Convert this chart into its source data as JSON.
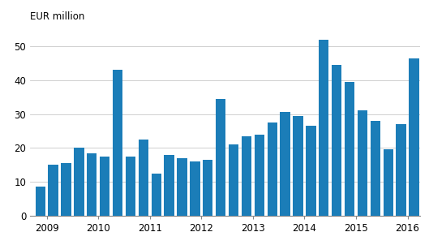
{
  "values": [
    8.5,
    15.0,
    15.5,
    20.0,
    18.5,
    17.5,
    43.0,
    17.5,
    22.5,
    12.5,
    18.0,
    17.0,
    16.0,
    16.5,
    34.5,
    21.0,
    23.5,
    24.0,
    27.5,
    30.5,
    29.5,
    26.5,
    52.0,
    44.5,
    39.5,
    31.0,
    28.0,
    19.5,
    27.0,
    46.5
  ],
  "year_labels": [
    "2009",
    "2010",
    "2011",
    "2012",
    "2013",
    "2014",
    "2015",
    "2016"
  ],
  "year_quarter_positions": [
    1.5,
    5.5,
    9.5,
    13.5,
    17.5,
    21.5,
    25.5,
    29.5
  ],
  "bar_color": "#1b7db8",
  "ylabel": "EUR million",
  "ylim": [
    0,
    55
  ],
  "yticks": [
    0,
    10,
    20,
    30,
    40,
    50
  ],
  "background_color": "#ffffff",
  "grid_color": "#c8c8c8",
  "ylabel_fontsize": 8.5,
  "tick_fontsize": 8.5
}
